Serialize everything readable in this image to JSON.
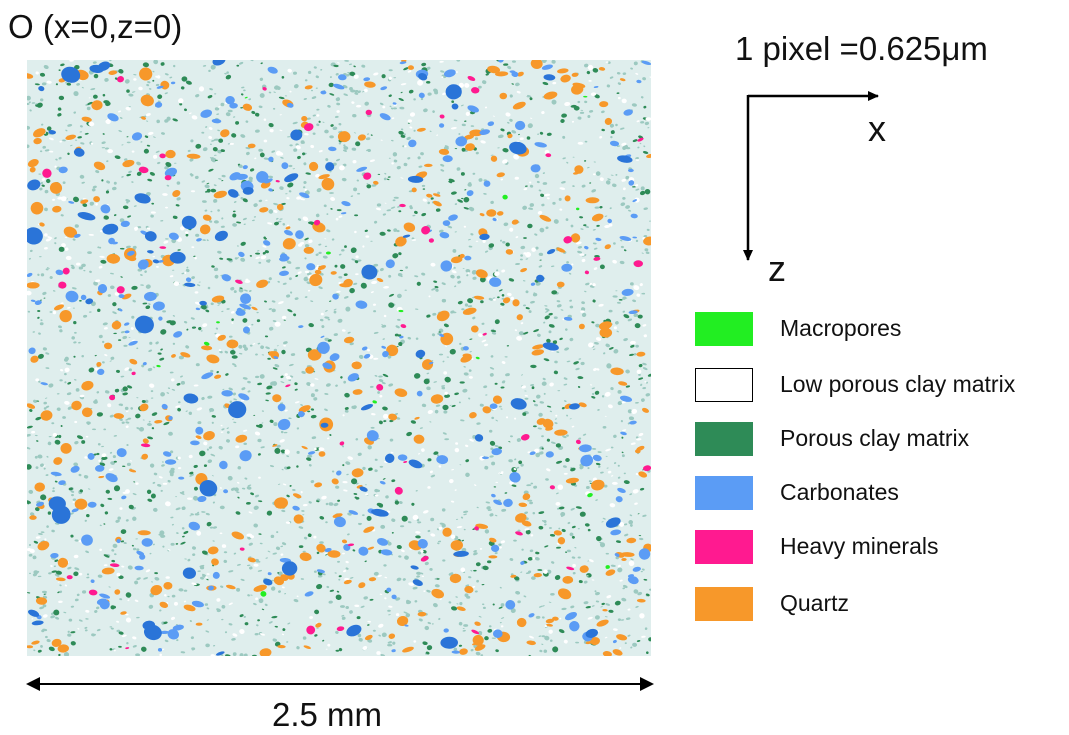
{
  "origin_label": "O (x=0,z=0)",
  "scale_label": "1 pixel =0.625μm",
  "axes": {
    "x_label": "x",
    "z_label": "z"
  },
  "dimension_label": "2.5 mm",
  "legend": [
    {
      "label": "Macropores",
      "color": "#22ee22"
    },
    {
      "label": "Low porous clay matrix",
      "color": "#ffffff"
    },
    {
      "label": "Porous clay matrix",
      "color": "#2e8b57"
    },
    {
      "label": "Carbonates",
      "color": "#5b9cf5"
    },
    {
      "label": "Heavy minerals",
      "color": "#ff1a90"
    },
    {
      "label": "Quartz",
      "color": "#f7982a"
    }
  ],
  "colors": {
    "map_background": "#dfeeed",
    "speckle": "#9cc9c0",
    "carbonate_dark": "#2a74d8"
  }
}
